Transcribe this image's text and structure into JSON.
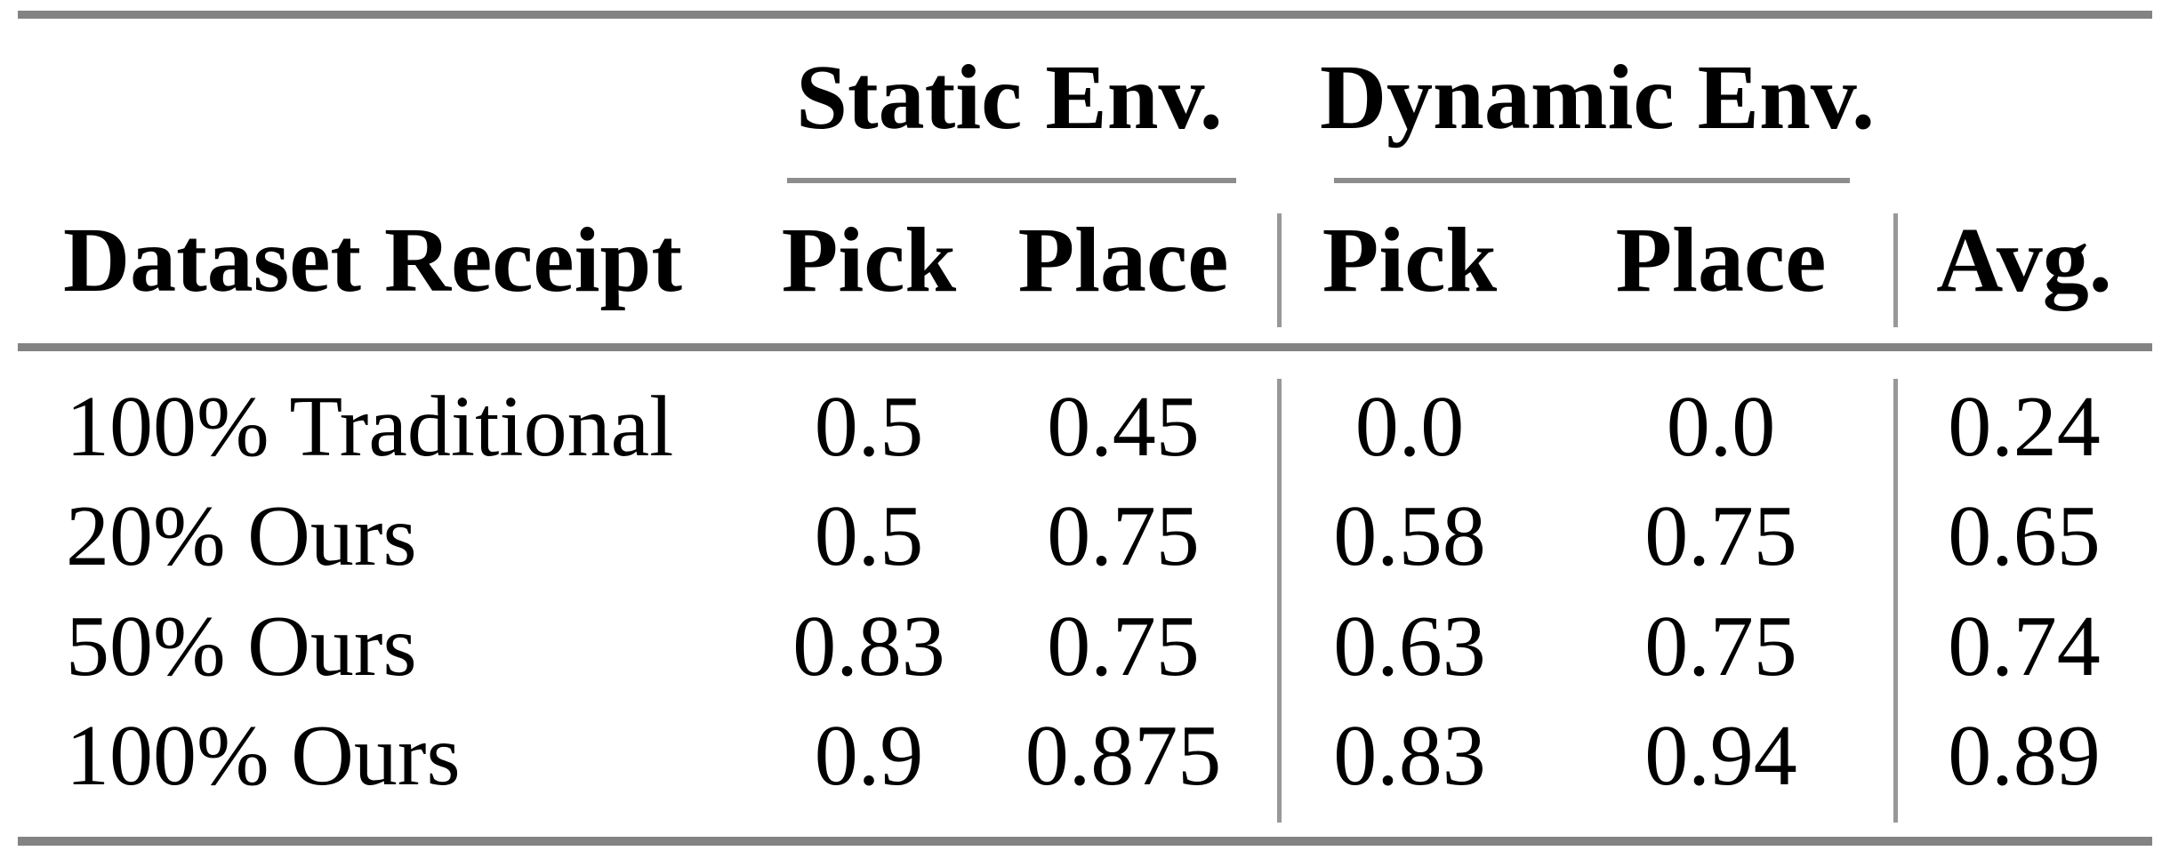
{
  "table": {
    "group_headers": {
      "static": "Static Env.",
      "dynamic": "Dynamic Env."
    },
    "column_headers": {
      "row_label": "Dataset Receipt",
      "static_pick": "Pick",
      "static_place": "Place",
      "dynamic_pick": "Pick",
      "dynamic_place": "Place",
      "avg": "Avg."
    },
    "rows": [
      {
        "label": "100% Traditional",
        "static_pick": "0.5",
        "static_place": "0.45",
        "dynamic_pick": "0.0",
        "dynamic_place": "0.0",
        "avg": "0.24"
      },
      {
        "label": "20% Ours",
        "static_pick": "0.5",
        "static_place": "0.75",
        "dynamic_pick": "0.58",
        "dynamic_place": "0.75",
        "avg": "0.65"
      },
      {
        "label": "50% Ours",
        "static_pick": "0.83",
        "static_place": "0.75",
        "dynamic_pick": "0.63",
        "dynamic_place": "0.75",
        "avg": "0.74"
      },
      {
        "label": "100% Ours",
        "static_pick": "0.9",
        "static_place": "0.875",
        "dynamic_pick": "0.83",
        "dynamic_place": "0.94",
        "avg": "0.89"
      }
    ]
  },
  "colors": {
    "text": "#000000",
    "rule_thick": "#838383",
    "rule_thin": "#8d8d8d",
    "rule_vertical": "#989898",
    "background": "#ffffff"
  },
  "chart_data": {
    "type": "table",
    "columns": [
      "Dataset Receipt",
      "Static Env. Pick",
      "Static Env. Place",
      "Dynamic Env. Pick",
      "Dynamic Env. Place",
      "Avg."
    ],
    "rows": [
      [
        "100% Traditional",
        0.5,
        0.45,
        0.0,
        0.0,
        0.24
      ],
      [
        "20% Ours",
        0.5,
        0.75,
        0.58,
        0.75,
        0.65
      ],
      [
        "50% Ours",
        0.83,
        0.75,
        0.63,
        0.75,
        0.74
      ],
      [
        "100% Ours",
        0.9,
        0.875,
        0.83,
        0.94,
        0.89
      ]
    ]
  }
}
